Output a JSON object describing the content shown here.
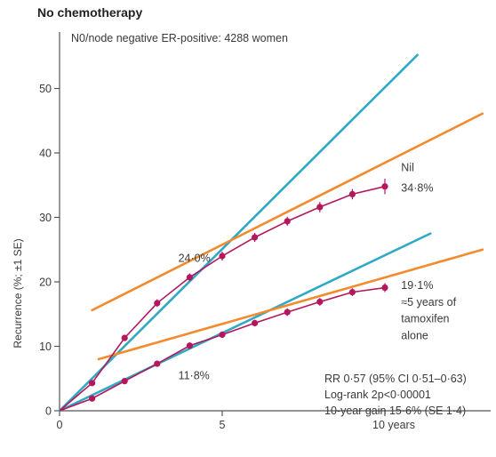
{
  "chart_data": {
    "type": "line",
    "title": "No chemotherapy",
    "subtitle": "N0/node negative ER-positive: 4288 women",
    "xlabel": "",
    "ylabel": "Recurrence (%; ±1 SE)",
    "xlim": [
      0,
      13
    ],
    "ylim": [
      0,
      55
    ],
    "x_ticks": [
      0,
      5,
      10
    ],
    "x_tick_labels": [
      "0",
      "5",
      "10 years"
    ],
    "y_ticks": [
      0,
      10,
      20,
      30,
      40,
      50
    ],
    "y_tick_labels": [
      "0",
      "10",
      "20",
      "30",
      "40",
      "50"
    ],
    "series": [
      {
        "name": "Nil",
        "color": "#b5175c",
        "x": [
          0,
          1,
          2,
          3,
          4,
          5,
          6,
          7,
          8,
          9,
          10
        ],
        "y": [
          0,
          4.3,
          11.3,
          16.7,
          20.7,
          24.0,
          26.9,
          29.4,
          31.6,
          33.6,
          34.8
        ],
        "se": [
          0,
          0.4,
          0.5,
          0.6,
          0.6,
          0.7,
          0.7,
          0.7,
          0.8,
          0.8,
          1.2
        ]
      },
      {
        "name": "≈5 years of tamoxifen alone",
        "color": "#b5175c",
        "x": [
          0,
          1,
          2,
          3,
          4,
          5,
          6,
          7,
          8,
          9,
          10
        ],
        "y": [
          0,
          1.9,
          4.6,
          7.3,
          10.1,
          11.8,
          13.6,
          15.3,
          16.9,
          18.4,
          19.1
        ],
        "se": [
          0,
          0.3,
          0.4,
          0.4,
          0.5,
          0.5,
          0.5,
          0.6,
          0.6,
          0.6,
          0.7
        ]
      }
    ],
    "trend_lines": [
      {
        "color": "#2fa9c4",
        "x": [
          0,
          11
        ],
        "y": [
          0,
          55.2
        ]
      },
      {
        "color": "#f28a2e",
        "x": [
          1,
          13
        ],
        "y": [
          15.6,
          46.1
        ]
      },
      {
        "color": "#2fa9c4",
        "x": [
          0,
          11.4
        ],
        "y": [
          0,
          27.5
        ]
      },
      {
        "color": "#f28a2e",
        "x": [
          1.2,
          13
        ],
        "y": [
          8.0,
          25.0
        ]
      }
    ],
    "annotations": [
      {
        "text": "24·0%",
        "x": 3.65,
        "y": 23.1
      },
      {
        "text": "11·8%",
        "x": 3.65,
        "y": 4.9
      },
      {
        "text": "Nil",
        "x": 10.5,
        "y": 37.2
      },
      {
        "text": "34·8%",
        "x": 10.5,
        "y": 34.0
      },
      {
        "text": "19·1%",
        "x": 10.5,
        "y": 18.9
      },
      {
        "text": "≈5 years of",
        "x": 10.5,
        "y": 16.3
      },
      {
        "text": "tamoxifen",
        "x": 10.5,
        "y": 13.7
      },
      {
        "text": "alone",
        "x": 10.5,
        "y": 11.1
      }
    ],
    "stats": [
      "RR 0·57 (95% CI 0·51–0·63)",
      "Log-rank 2p<0·00001",
      "10-year gain 15·6% (SE 1·4)"
    ]
  }
}
